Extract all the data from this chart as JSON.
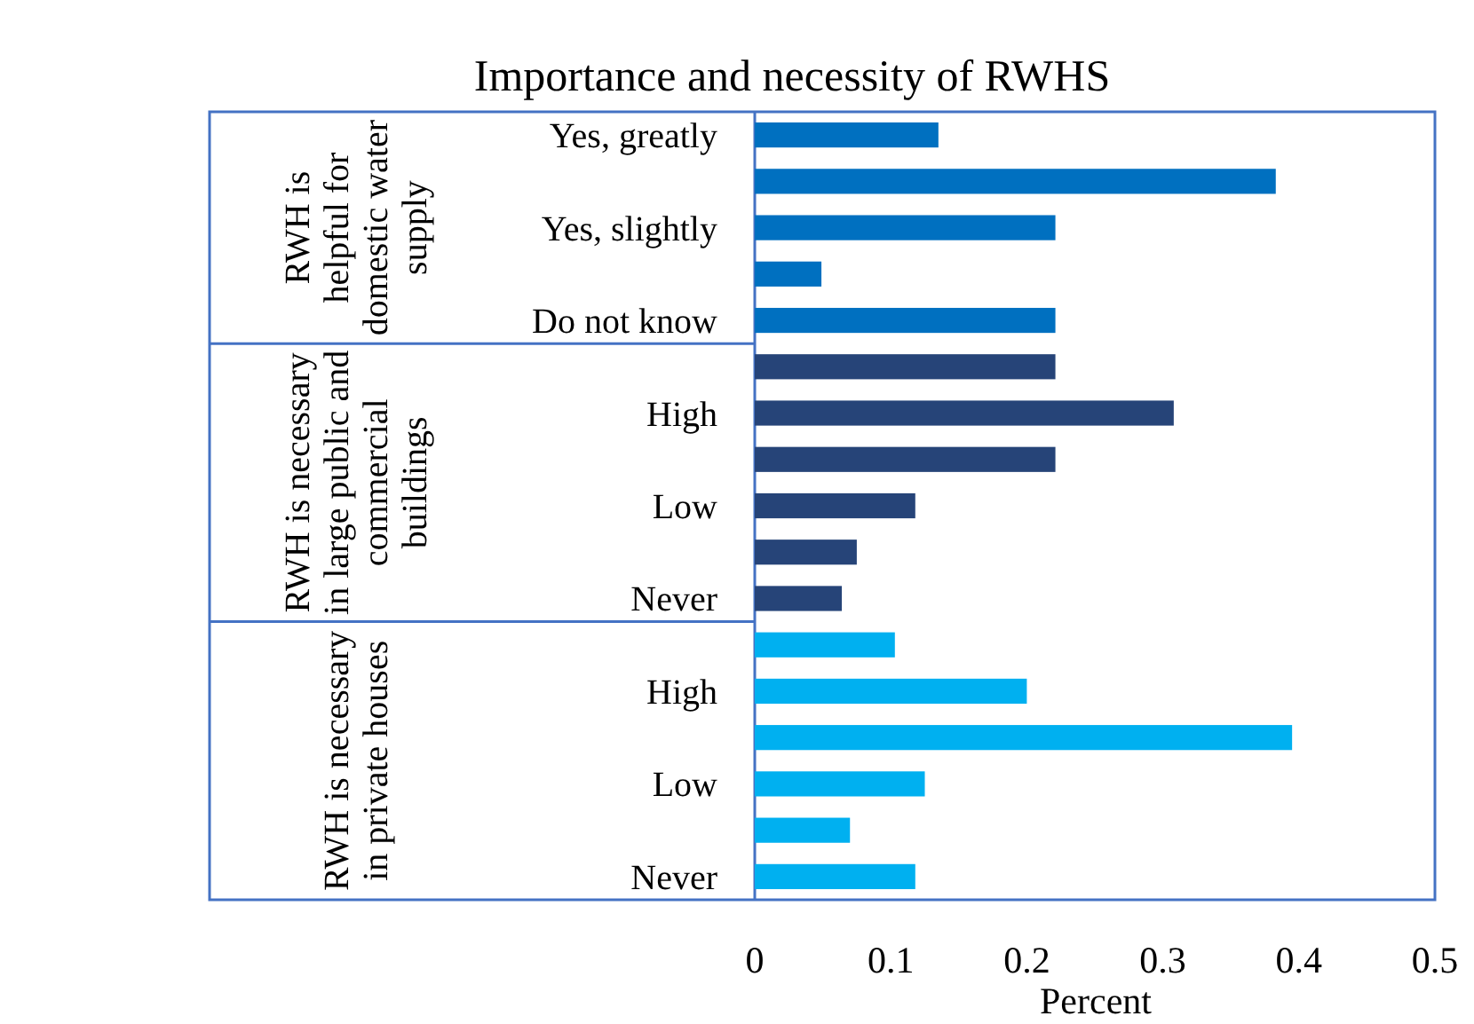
{
  "chart_data": {
    "type": "bar",
    "orientation": "horizontal",
    "title": "Importance and necessity of RWHS",
    "xlabel": "Percent",
    "categories": [
      "Yes, greatly",
      null,
      "Yes, slightly",
      null,
      "Do not know",
      null,
      "High",
      null,
      "Low",
      null,
      "Never",
      null,
      "High",
      null,
      "Low",
      null,
      "Never"
    ],
    "values": [
      0.135,
      0.383,
      0.221,
      0.049,
      0.221,
      0.221,
      0.308,
      0.221,
      0.118,
      0.075,
      0.064,
      0.103,
      0.2,
      0.395,
      0.125,
      0.07,
      0.118
    ],
    "colors": [
      "#0070c0",
      "#0070c0",
      "#0070c0",
      "#0070c0",
      "#0070c0",
      "#264478",
      "#264478",
      "#264478",
      "#264478",
      "#264478",
      "#264478",
      "#00b0f0",
      "#00b0f0",
      "#00b0f0",
      "#00b0f0",
      "#00b0f0",
      "#00b0f0"
    ],
    "xlim": [
      0,
      0.5
    ],
    "xticks": [
      0,
      0.1,
      0.2,
      0.3,
      0.4,
      0.5
    ],
    "annotations": [
      "RWH is helpful for domestic water supply",
      "RWH is necessary in large public and commercial buildings",
      "RWH is necessary in private houses"
    ]
  }
}
